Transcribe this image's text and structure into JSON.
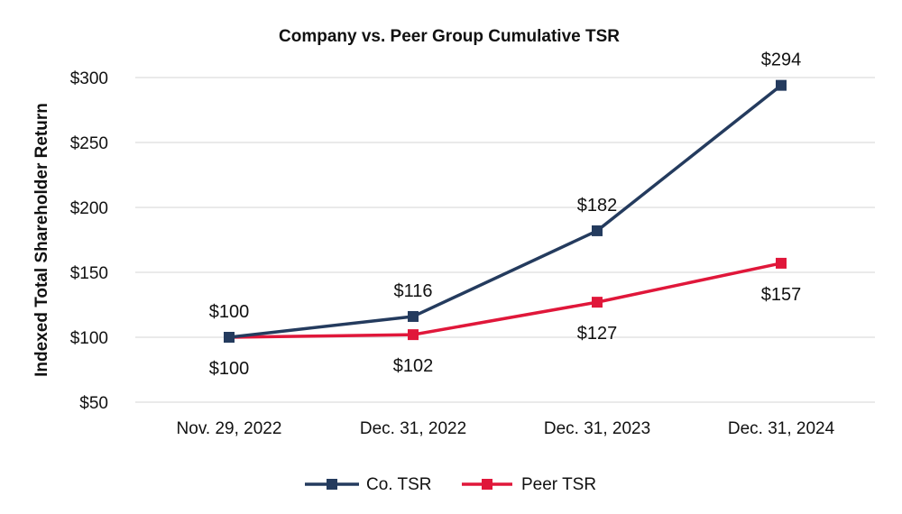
{
  "chart_data": {
    "type": "line",
    "title": "Company vs. Peer Group Cumulative TSR",
    "xlabel": "",
    "ylabel": "Indexed Total Shareholder Return",
    "categories": [
      "Nov. 29, 2022",
      "Dec. 31, 2022",
      "Dec. 31, 2023",
      "Dec. 31, 2024"
    ],
    "ylim": [
      50,
      300
    ],
    "yticks": [
      50,
      100,
      150,
      200,
      250,
      300
    ],
    "ytick_labels": [
      "$50",
      "$100",
      "$150",
      "$200",
      "$250",
      "$300"
    ],
    "grid": true,
    "legend_position": "bottom-center",
    "series": [
      {
        "name": "Co. TSR",
        "color": "#243b5e",
        "values": [
          100,
          116,
          182,
          294
        ],
        "labels": [
          "$100",
          "$116",
          "$182",
          "$294"
        ],
        "label_placement": "above"
      },
      {
        "name": "Peer TSR",
        "color": "#e0173a",
        "values": [
          100,
          102,
          127,
          157
        ],
        "labels": [
          "$100",
          "$102",
          "$127",
          "$157"
        ],
        "label_placement": "below"
      }
    ]
  }
}
